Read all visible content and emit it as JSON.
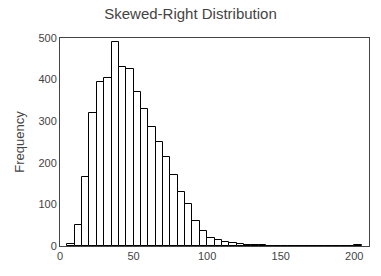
{
  "chart_data": {
    "type": "histogram",
    "title": "Skewed-Right Distribution",
    "ylabel": "Frequency",
    "bins": [
      5,
      10,
      15,
      20,
      25,
      30,
      35,
      40,
      45,
      50,
      55,
      60,
      65,
      70,
      75,
      80,
      85,
      90,
      95,
      100,
      105,
      110,
      115,
      120,
      125,
      130,
      135,
      140,
      145,
      150,
      155,
      160,
      165,
      170,
      175,
      180,
      185,
      190,
      195,
      200,
      205
    ],
    "values": [
      5,
      50,
      165,
      320,
      395,
      405,
      490,
      430,
      425,
      370,
      330,
      285,
      250,
      215,
      170,
      130,
      100,
      60,
      35,
      20,
      15,
      10,
      8,
      5,
      3,
      2,
      2,
      1,
      1,
      0,
      0,
      0,
      0,
      0,
      0,
      0,
      0,
      0,
      0,
      2
    ],
    "color": "#ffffff",
    "xlim": [
      0,
      210
    ],
    "xticks": [
      0,
      50,
      100,
      150,
      200
    ],
    "ylim": [
      0,
      500
    ],
    "yticks": [
      0,
      100,
      200,
      300,
      400,
      500
    ],
    "grid": false
  }
}
